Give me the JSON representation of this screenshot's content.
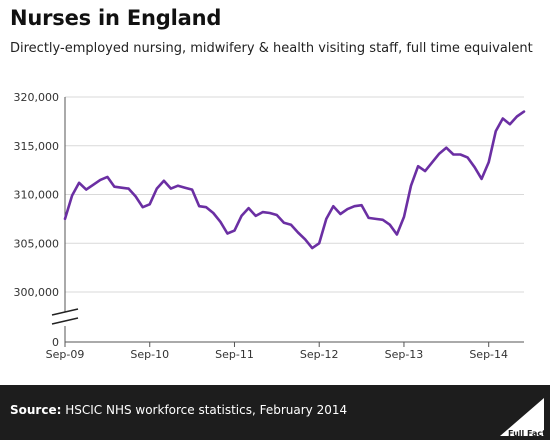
{
  "chart_data": {
    "type": "line",
    "title": "Nurses in England",
    "subtitle": "Directly-employed nursing, midwifery & health visiting staff, full time equivalent",
    "xlabel": "",
    "ylabel": "",
    "x_ticks": [
      "Sep-09",
      "Sep-10",
      "Sep-11",
      "Sep-12",
      "Sep-13",
      "Sep-14"
    ],
    "y_ticks": [
      "320,000",
      "315,000",
      "310,000",
      "305,000",
      "300,000",
      "0"
    ],
    "ylim": [
      300000,
      320000
    ],
    "axis_break": true,
    "grid": "horizontal",
    "line_color": "#6b2fa3",
    "series": [
      {
        "x": [
          "Sep-09",
          "Oct-09",
          "Nov-09",
          "Dec-09",
          "Jan-10",
          "Feb-10",
          "Mar-10",
          "Apr-10",
          "May-10",
          "Jun-10",
          "Jul-10",
          "Aug-10",
          "Sep-10",
          "Oct-10",
          "Nov-10",
          "Dec-10",
          "Jan-11",
          "Feb-11",
          "Mar-11",
          "Apr-11",
          "May-11",
          "Jun-11",
          "Jul-11",
          "Aug-11",
          "Sep-11",
          "Oct-11",
          "Nov-11",
          "Dec-11",
          "Jan-12",
          "Feb-12",
          "Mar-12",
          "Apr-12",
          "May-12",
          "Jun-12",
          "Jul-12",
          "Aug-12",
          "Sep-12",
          "Oct-12",
          "Nov-12",
          "Dec-12",
          "Jan-13",
          "Feb-13",
          "Mar-13",
          "Apr-13",
          "May-13",
          "Jun-13",
          "Jul-13",
          "Aug-13",
          "Sep-13",
          "Oct-13",
          "Nov-13",
          "Dec-13",
          "Jan-14",
          "Feb-14",
          "Mar-14",
          "Apr-14",
          "May-14",
          "Jun-14",
          "Jul-14",
          "Aug-14",
          "Sep-14",
          "Oct-14",
          "Nov-14",
          "Dec-14",
          "Jan-15",
          "Feb-15"
        ],
        "values": [
          307500,
          309900,
          311200,
          310500,
          311000,
          311500,
          311800,
          310800,
          310700,
          310600,
          309800,
          308700,
          309000,
          310600,
          311400,
          310600,
          310900,
          310700,
          310500,
          308800,
          308700,
          308100,
          307200,
          306000,
          306300,
          307800,
          308600,
          307800,
          308200,
          308100,
          307900,
          307100,
          306900,
          306100,
          305400,
          304500,
          305000,
          307500,
          308800,
          308000,
          308500,
          308800,
          308900,
          307600,
          307500,
          307400,
          306900,
          305900,
          307700,
          310900,
          312900,
          312400,
          313300,
          314200,
          314800,
          314100,
          314100,
          313800,
          312800,
          311600,
          313300,
          316500,
          317800,
          317200,
          318000,
          318500
        ]
      }
    ]
  },
  "footer": {
    "source_label": "Source:",
    "source_text": " HSCIC NHS workforce statistics, February 2014",
    "logo_text": "Full Fact"
  },
  "colors": {
    "footer_bg": "#1d1d1d",
    "line": "#6b2fa3",
    "grid": "#d9d9d9"
  }
}
